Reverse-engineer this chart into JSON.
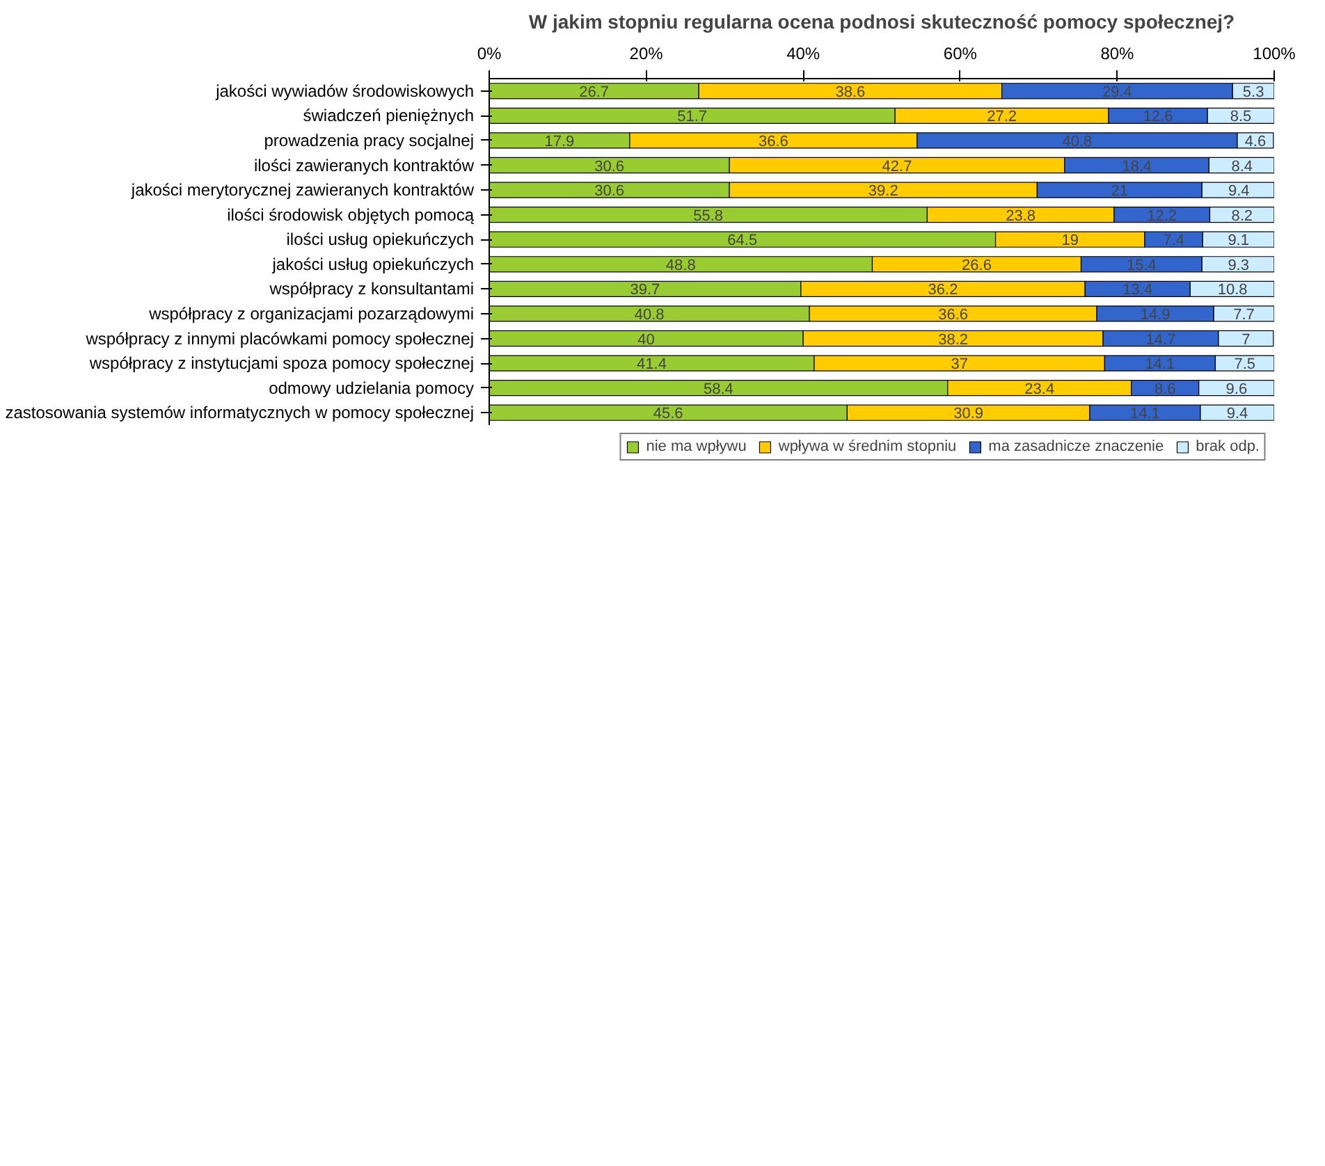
{
  "chart_data": {
    "type": "bar",
    "orientation": "horizontal",
    "stacked": true,
    "title": "W jakim stopniu regularna ocena podnosi skuteczność pomocy społecznej?",
    "categories": [
      "jakości wywiadów środowiskowych",
      "świadczeń pieniężnych",
      "prowadzenia pracy socjalnej",
      "ilości zawieranych kontraktów",
      "jakości merytorycznej zawieranych kontraktów",
      "ilości środowisk objętych pomocą",
      "ilości usług opiekuńczych",
      "jakości usług opiekuńczych",
      "współpracy z konsultantami",
      "współpracy z organizacjami pozarządowymi",
      "współpracy z innymi placówkami pomocy społecznej",
      "współpracy z instytucjami spoza pomocy społecznej",
      "odmowy udzielania pomocy",
      "zastosowania systemów informatycznych w pomocy społecznej"
    ],
    "series": [
      {
        "name": "nie ma wpływu",
        "color": "#99cc33",
        "values": [
          26.7,
          51.7,
          17.9,
          30.6,
          30.6,
          55.8,
          64.5,
          48.8,
          39.7,
          40.8,
          40,
          41.4,
          58.4,
          45.6
        ]
      },
      {
        "name": "wpływa w średnim stopniu",
        "color": "#ffcc00",
        "values": [
          38.6,
          27.2,
          36.6,
          42.7,
          39.2,
          23.8,
          19,
          26.6,
          36.2,
          36.6,
          38.2,
          37,
          23.4,
          30.9
        ]
      },
      {
        "name": "ma zasadnicze znaczenie",
        "color": "#3366cc",
        "values": [
          29.4,
          12.6,
          40.8,
          18.4,
          21,
          12.2,
          7.4,
          15.4,
          13.4,
          14.9,
          14.7,
          14.1,
          8.6,
          14.1
        ]
      },
      {
        "name": "brak odp.",
        "color": "#ccecff",
        "values": [
          5.3,
          8.5,
          4.6,
          8.4,
          9.4,
          8.2,
          9.1,
          9.3,
          10.8,
          7.7,
          7,
          7.5,
          9.6,
          9.4
        ]
      }
    ],
    "xlim": [
      0,
      100
    ],
    "xticks": [
      {
        "value": 0,
        "label": "0%"
      },
      {
        "value": 20,
        "label": "20%"
      },
      {
        "value": 40,
        "label": "40%"
      },
      {
        "value": 60,
        "label": "60%"
      },
      {
        "value": 80,
        "label": "80%"
      },
      {
        "value": 100,
        "label": "100%"
      }
    ],
    "data_labels": true,
    "legend": "bottom",
    "grid": false
  }
}
